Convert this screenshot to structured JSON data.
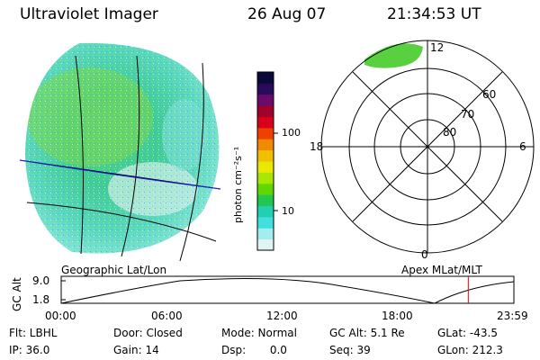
{
  "header": {
    "instrument": "Ultraviolet Imager",
    "date": "26 Aug 07",
    "time": "21:34:53 UT"
  },
  "geo_panel": {
    "caption": "Geographic Lat/Lon"
  },
  "colorbar": {
    "unit_label": "photon cm⁻²s⁻¹",
    "tick_labels": [
      "100",
      "10"
    ],
    "colors": [
      "#0a0a3a",
      "#2a0a5a",
      "#6a0a6a",
      "#a0002a",
      "#d8001a",
      "#f04000",
      "#f08a00",
      "#f0c000",
      "#e8e800",
      "#a8e800",
      "#60d800",
      "#20c850",
      "#20d0b0",
      "#40e0e0",
      "#a0eeee",
      "#e0f4f4"
    ]
  },
  "polar_panel": {
    "caption": "Apex MLat/MLT",
    "mlt_labels": {
      "top": "12",
      "left": "18",
      "right": "6",
      "bottom": "0"
    },
    "lat_labels": [
      "60",
      "70",
      "80"
    ]
  },
  "alt_plot": {
    "ylabel": "GC Alt",
    "ytick_top": "9.0",
    "ytick_bottom": "1.8",
    "xticks": [
      "00:00",
      "06:00",
      "12:00",
      "18:00",
      "23:59"
    ],
    "marker_time": "21:34:53",
    "marker_color": "#e00000"
  },
  "footer": {
    "row1": {
      "flt": "Flt: LBHL",
      "door": "Door: Closed",
      "mode": "Mode: Normal",
      "gc_alt": "GC Alt: 5.1 Re",
      "glat": "GLat: -43.5"
    },
    "row2": {
      "ip": "IP: 36.0",
      "gain": "Gain: 14",
      "dsp": "Dsp:       0.0",
      "seq": "Seq: 39",
      "glon": "GLon: 212.3"
    }
  }
}
